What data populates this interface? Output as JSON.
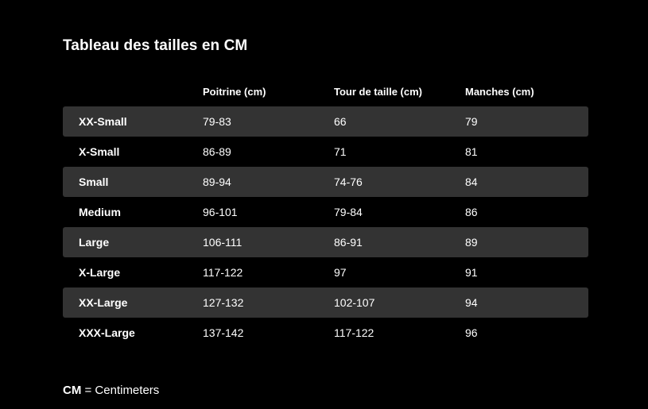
{
  "title": "Tableau des tailles en CM",
  "table": {
    "headers": [
      "",
      "Poitrine (cm)",
      "Tour de taille (cm)",
      "Manches (cm)"
    ],
    "rows": [
      {
        "size": "XX-Small",
        "chest": "79-83",
        "waist": "66",
        "sleeve": "79"
      },
      {
        "size": "X-Small",
        "chest": "86-89",
        "waist": "71",
        "sleeve": "81"
      },
      {
        "size": "Small",
        "chest": "89-94",
        "waist": "74-76",
        "sleeve": "84"
      },
      {
        "size": "Medium",
        "chest": "96-101",
        "waist": "79-84",
        "sleeve": "86"
      },
      {
        "size": "Large",
        "chest": "106-111",
        "waist": "86-91",
        "sleeve": "89"
      },
      {
        "size": "X-Large",
        "chest": "117-122",
        "waist": "97",
        "sleeve": "91"
      },
      {
        "size": "XX-Large",
        "chest": "127-132",
        "waist": "102-107",
        "sleeve": "94"
      },
      {
        "size": "XXX-Large",
        "chest": "137-142",
        "waist": "117-122",
        "sleeve": "96"
      }
    ]
  },
  "footnote": {
    "abbr": "CM",
    "text": " = Centimeters"
  },
  "colors": {
    "background": "#000000",
    "row_shade": "#333333",
    "text": "#ffffff"
  }
}
